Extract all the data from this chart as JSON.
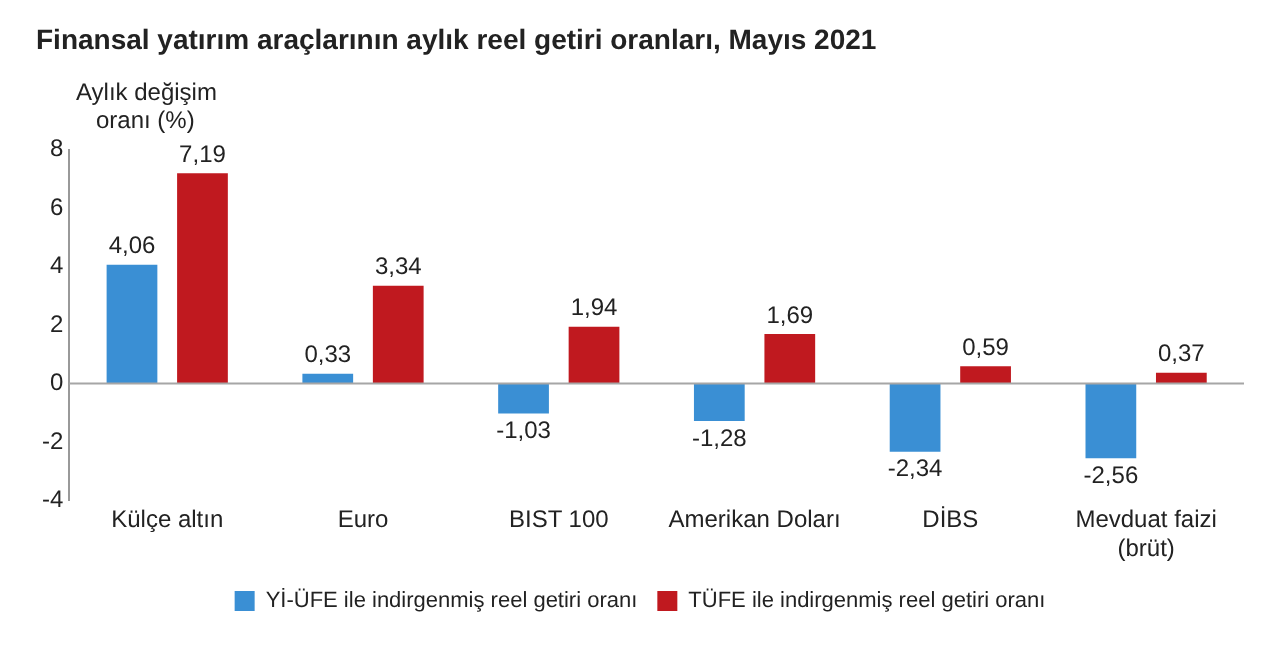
{
  "chart_data": {
    "type": "bar",
    "title": "Finansal yatırım araçlarının aylık reel getiri oranları, Mayıs 2021",
    "ylabel": "Aylık değişim oranı (%)",
    "categories": [
      "Külçe altın",
      "Euro",
      "BIST 100",
      "Amerikan Doları",
      "DİBS",
      "Mevduat faizi (brüt)"
    ],
    "series": [
      {
        "name": "Yİ-ÜFE ile indirgenmiş reel getiri oranı",
        "color": "#3a8fd4",
        "values": [
          4.06,
          0.33,
          -1.03,
          -1.28,
          -2.34,
          -2.56
        ],
        "value_labels": [
          "4,06",
          "0,33",
          "-1,03",
          "-1,28",
          "-2,34",
          "-2,56"
        ]
      },
      {
        "name": "TÜFE ile indirgenmiş reel getiri oranı",
        "color": "#c0191f",
        "values": [
          7.19,
          3.34,
          1.94,
          1.69,
          0.59,
          0.37
        ],
        "value_labels": [
          "7,19",
          "3,34",
          "1,94",
          "1,69",
          "0,59",
          "0,37"
        ]
      }
    ],
    "ref_lines": [
      {
        "axis": "y",
        "value": 0,
        "color": "#a6a6a6"
      }
    ],
    "ylim": [
      -4,
      8
    ],
    "yticks": [
      -4,
      -2,
      0,
      2,
      4,
      6,
      8
    ],
    "grid": false,
    "legend": "bottom"
  }
}
